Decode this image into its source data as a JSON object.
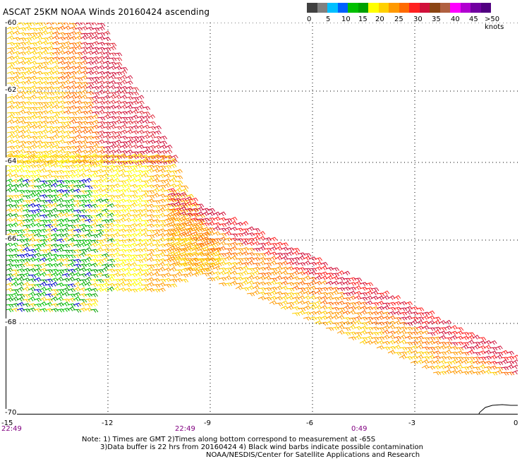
{
  "title": "ASCAT 25KM NOAA Winds 20160424 ascending",
  "legend": {
    "colors": [
      "#404040",
      "#808080",
      "#00bfff",
      "#0060ff",
      "#00c000",
      "#00a000",
      "#ffff00",
      "#ffd000",
      "#ff9900",
      "#ff6a00",
      "#ff2020",
      "#d0103a",
      "#8b4513",
      "#b06040",
      "#ff00ff",
      "#b000d0",
      "#7000a0",
      "#500080"
    ],
    "ticks": [
      "0",
      "5",
      "10",
      "15",
      "20",
      "25",
      "30",
      "35",
      "40",
      "45",
      ">50 knots"
    ]
  },
  "y_axis": {
    "labels": [
      "-60",
      "-62",
      "-64",
      "-66",
      "-68",
      "-70"
    ]
  },
  "x_axis": {
    "labels": [
      "-15",
      "-12",
      "-9",
      "-6",
      "-3",
      "0"
    ]
  },
  "times": [
    "22:49",
    "22:49",
    "0:49"
  ],
  "notes": {
    "line1": "Note: 1) Times are GMT 2)Times along bottom correspond to measurement at -65S",
    "line2": "3)Data buffer is 22 hrs from 20160424 4) Black wind barbs indicate possible contamination",
    "line3": "NOAA/NESDIS/Center for Satellite Applications and Research"
  }
}
